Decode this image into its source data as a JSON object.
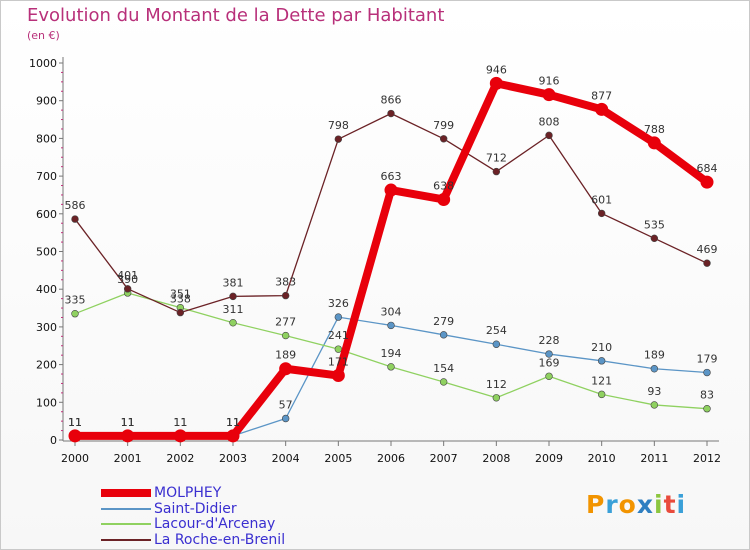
{
  "header": {
    "title": "Evolution du Montant de la Dette par Habitant",
    "subtitle": "(en €)"
  },
  "logo": {
    "text": "Proxiti",
    "colors": [
      "#f29400",
      "#3aa0d8",
      "#f29400",
      "#2f7fc1",
      "#8cc63f",
      "#e94b3c",
      "#3aa0d8"
    ]
  },
  "chart_data": {
    "type": "line",
    "title": "Evolution du Montant de la Dette par Habitant",
    "subtitle": "(en €)",
    "x": [
      2000,
      2001,
      2002,
      2003,
      2004,
      2005,
      2006,
      2007,
      2008,
      2009,
      2010,
      2011,
      2012
    ],
    "ylim": [
      0,
      1000
    ],
    "yticks": [
      0,
      100,
      200,
      300,
      400,
      500,
      600,
      700,
      800,
      900,
      1000
    ],
    "grid": false,
    "legend_position": "bottom-left",
    "series": [
      {
        "name": "MOLPHEY",
        "color": "#e8000b",
        "emphasis": true,
        "values": [
          11,
          11,
          11,
          11,
          189,
          171,
          663,
          638,
          946,
          916,
          877,
          788,
          684
        ],
        "labels": [
          "11",
          "11",
          "11",
          "11",
          "189",
          "171",
          "663",
          "638",
          "946",
          "916",
          "877",
          "788",
          "684"
        ]
      },
      {
        "name": "Saint-Didier",
        "color": "#5b95c6",
        "emphasis": false,
        "values": [
          11,
          11,
          11,
          11,
          57,
          326,
          304,
          279,
          254,
          228,
          210,
          189,
          179
        ],
        "labels": [
          "11",
          "11",
          "11",
          "11",
          "57",
          "326",
          "304",
          "279",
          "254",
          "228",
          "210",
          "189",
          "179"
        ]
      },
      {
        "name": "Lacour-d'Arcenay",
        "color": "#8fd160",
        "emphasis": false,
        "values": [
          335,
          390,
          351,
          311,
          277,
          241,
          194,
          154,
          112,
          169,
          121,
          93,
          83
        ],
        "labels": [
          "335",
          "390",
          "351",
          "311",
          "277",
          "241",
          "194",
          "154",
          "112",
          "169",
          "121",
          "93",
          "83"
        ]
      },
      {
        "name": "La Roche-en-Brenil",
        "color": "#6b2226",
        "emphasis": false,
        "values": [
          586,
          401,
          338,
          381,
          383,
          798,
          866,
          799,
          712,
          808,
          601,
          535,
          469
        ],
        "labels": [
          "586",
          "401",
          "338",
          "381",
          "383",
          "798",
          "866",
          "799",
          "712",
          "808",
          "601",
          "535",
          "469"
        ]
      }
    ]
  }
}
